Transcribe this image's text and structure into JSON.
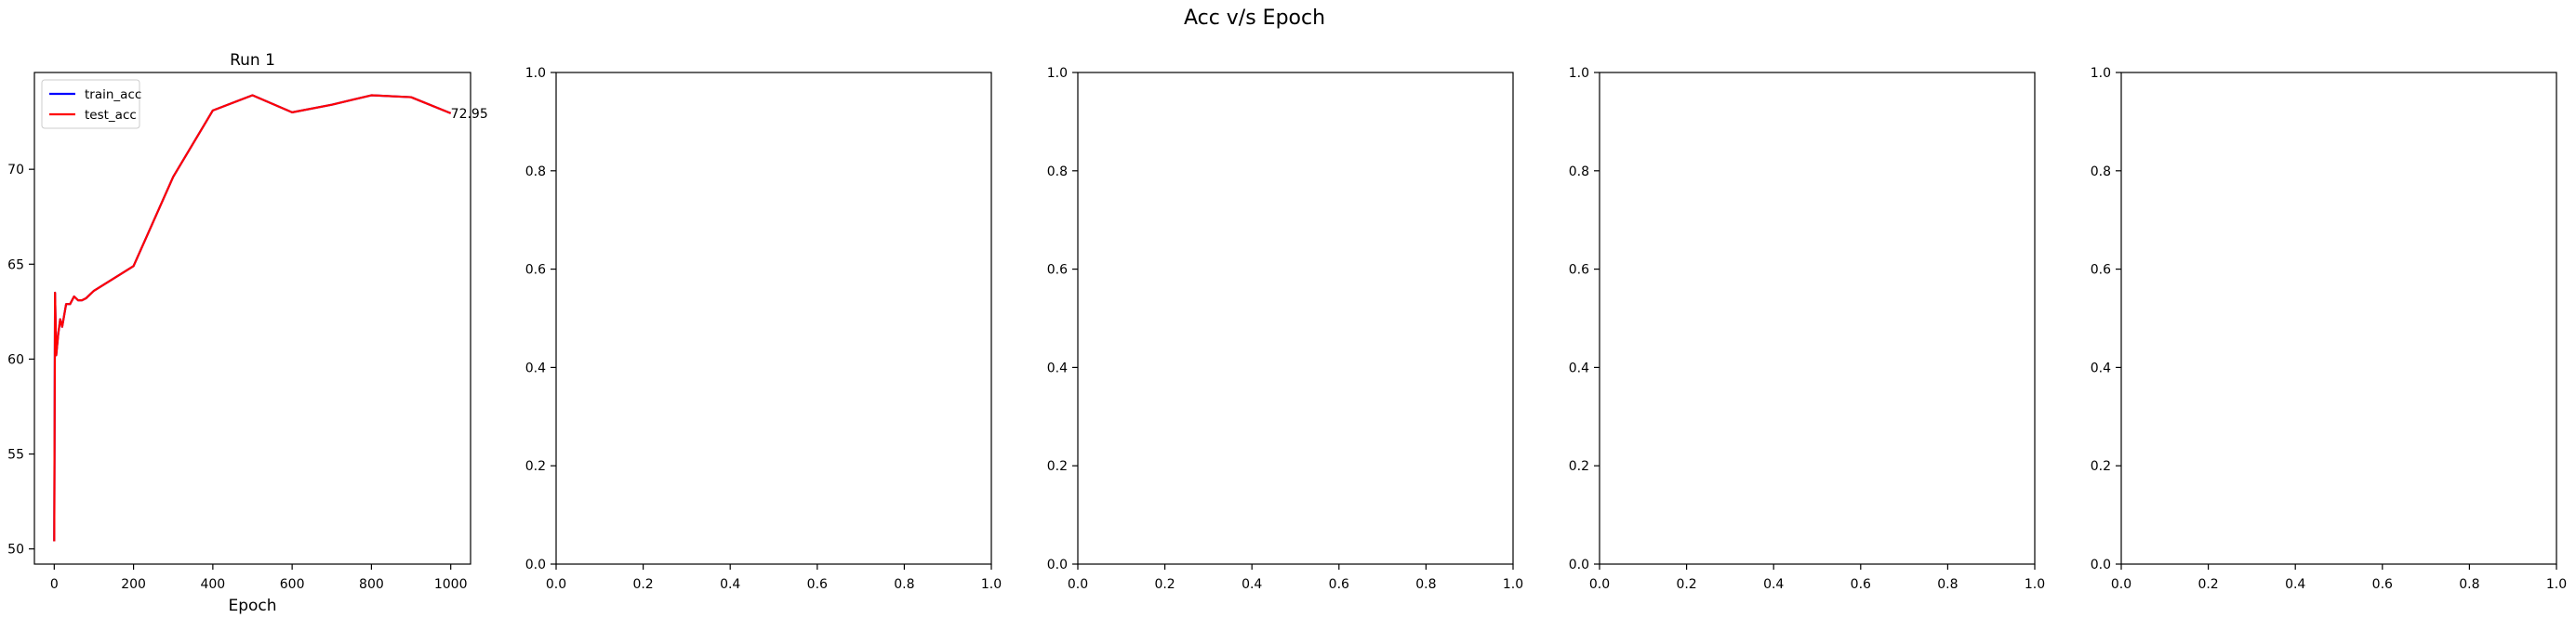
{
  "figure": {
    "suptitle": "Acc v/s Epoch"
  },
  "chart_data": [
    {
      "type": "line",
      "title": "Run 1",
      "xlabel": "Epoch",
      "ylabel": "",
      "xlim": [
        -50,
        1050
      ],
      "ylim": [
        49.2,
        75.1
      ],
      "xticks": [
        0,
        200,
        400,
        600,
        800,
        1000
      ],
      "yticks": [
        50,
        55,
        60,
        65,
        70
      ],
      "grid": false,
      "legend": {
        "position": "top-left"
      },
      "series": [
        {
          "name": "train_acc",
          "color": "#0000ff",
          "x": [
            0,
            2,
            5,
            10,
            15,
            20,
            30,
            40,
            50,
            60,
            70,
            80,
            90,
            100,
            200,
            300,
            400,
            500,
            600,
            700,
            800,
            900,
            1000
          ],
          "values": [
            50.4,
            63.5,
            60.2,
            61.3,
            62.1,
            61.7,
            62.9,
            62.9,
            63.3,
            63.1,
            63.1,
            63.2,
            63.4,
            63.6,
            64.9,
            69.6,
            73.1,
            73.9,
            73.0,
            73.4,
            73.9,
            73.8,
            72.95
          ]
        },
        {
          "name": "test_acc",
          "color": "#ff0000",
          "x": [
            0,
            2,
            5,
            10,
            15,
            20,
            30,
            40,
            50,
            60,
            70,
            80,
            90,
            100,
            200,
            300,
            400,
            500,
            600,
            700,
            800,
            900,
            1000
          ],
          "values": [
            50.4,
            63.5,
            60.2,
            61.3,
            62.1,
            61.7,
            62.9,
            62.9,
            63.3,
            63.1,
            63.1,
            63.2,
            63.4,
            63.6,
            64.9,
            69.6,
            73.1,
            73.9,
            73.0,
            73.4,
            73.9,
            73.8,
            72.95
          ]
        }
      ],
      "annotations": [
        {
          "text": "72.95",
          "x": 1000,
          "y": 72.95
        }
      ]
    },
    {
      "type": "line",
      "title": "",
      "xlim": [
        0,
        1
      ],
      "ylim": [
        0,
        1
      ],
      "xticks": [
        0.0,
        0.2,
        0.4,
        0.6,
        0.8,
        1.0
      ],
      "yticks": [
        0.0,
        0.2,
        0.4,
        0.6,
        0.8,
        1.0
      ],
      "tick_labels": [
        "0.0",
        "0.2",
        "0.4",
        "0.6",
        "0.8",
        "1.0"
      ],
      "series": []
    },
    {
      "type": "line",
      "title": "",
      "xlim": [
        0,
        1
      ],
      "ylim": [
        0,
        1
      ],
      "xticks": [
        0.0,
        0.2,
        0.4,
        0.6,
        0.8,
        1.0
      ],
      "yticks": [
        0.0,
        0.2,
        0.4,
        0.6,
        0.8,
        1.0
      ],
      "tick_labels": [
        "0.0",
        "0.2",
        "0.4",
        "0.6",
        "0.8",
        "1.0"
      ],
      "series": []
    },
    {
      "type": "line",
      "title": "",
      "xlim": [
        0,
        1
      ],
      "ylim": [
        0,
        1
      ],
      "xticks": [
        0.0,
        0.2,
        0.4,
        0.6,
        0.8,
        1.0
      ],
      "yticks": [
        0.0,
        0.2,
        0.4,
        0.6,
        0.8,
        1.0
      ],
      "tick_labels": [
        "0.0",
        "0.2",
        "0.4",
        "0.6",
        "0.8",
        "1.0"
      ],
      "series": []
    },
    {
      "type": "line",
      "title": "",
      "xlim": [
        0,
        1
      ],
      "ylim": [
        0,
        1
      ],
      "xticks": [
        0.0,
        0.2,
        0.4,
        0.6,
        0.8,
        1.0
      ],
      "yticks": [
        0.0,
        0.2,
        0.4,
        0.6,
        0.8,
        1.0
      ],
      "tick_labels": [
        "0.0",
        "0.2",
        "0.4",
        "0.6",
        "0.8",
        "1.0"
      ],
      "series": []
    }
  ]
}
